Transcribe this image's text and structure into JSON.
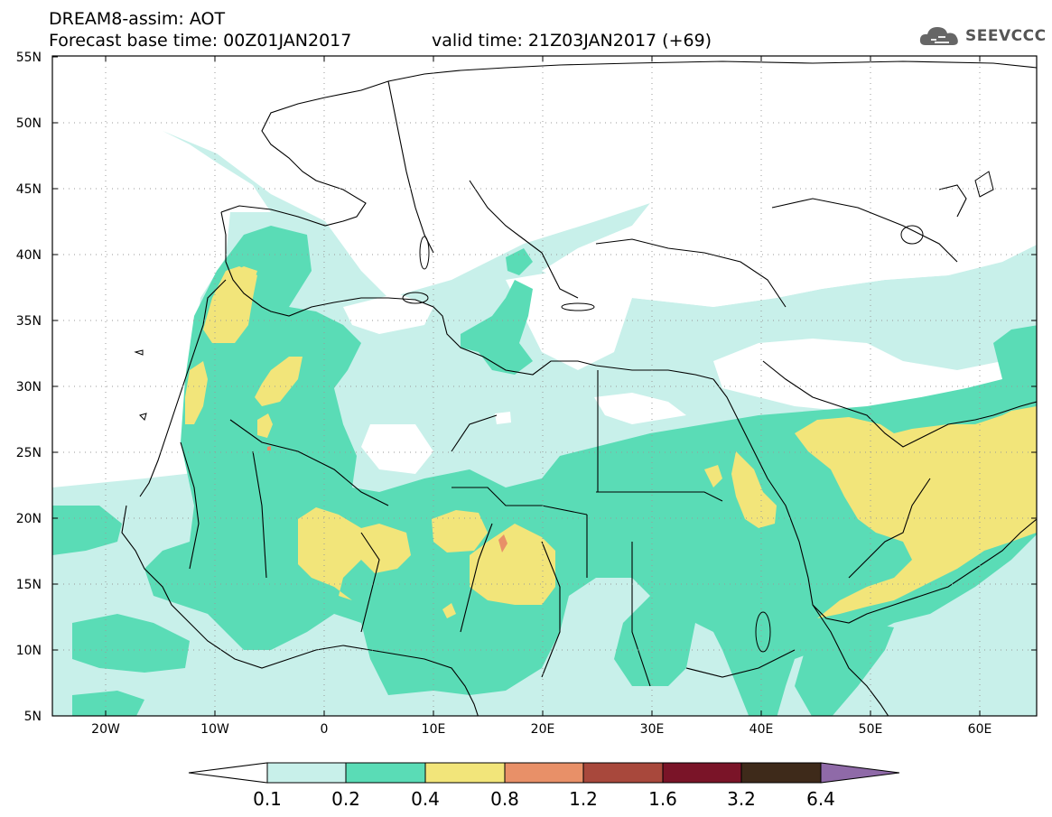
{
  "title": {
    "line1": "DREAM8-assim: AOT",
    "line2": "Forecast base time: 00Z01JAN2017",
    "valid": "valid time: 21Z03JAN2017 (+69)"
  },
  "logo": {
    "text": "SEEVCCC",
    "icon": "cloud-icon"
  },
  "map": {
    "extent": {
      "lon": [
        -25,
        65
      ],
      "lat": [
        5,
        55
      ]
    },
    "lat_labels": [
      "55N",
      "50N",
      "45N",
      "40N",
      "35N",
      "30N",
      "25N",
      "20N",
      "15N",
      "10N",
      "5N"
    ],
    "lon_labels": [
      "20W",
      "10W",
      "0",
      "10E",
      "20E",
      "30E",
      "40E",
      "50E",
      "60E"
    ]
  },
  "colorbar": {
    "labels": [
      "0.1",
      "0.2",
      "0.4",
      "0.8",
      "1.2",
      "1.6",
      "3.2",
      "6.4"
    ],
    "colors": [
      "#c8f0ea",
      "#5adcb6",
      "#f2e57a",
      "#e89068",
      "#a8483c",
      "#7a1428",
      "#3e2a1a",
      "#8f6aa8"
    ]
  }
}
